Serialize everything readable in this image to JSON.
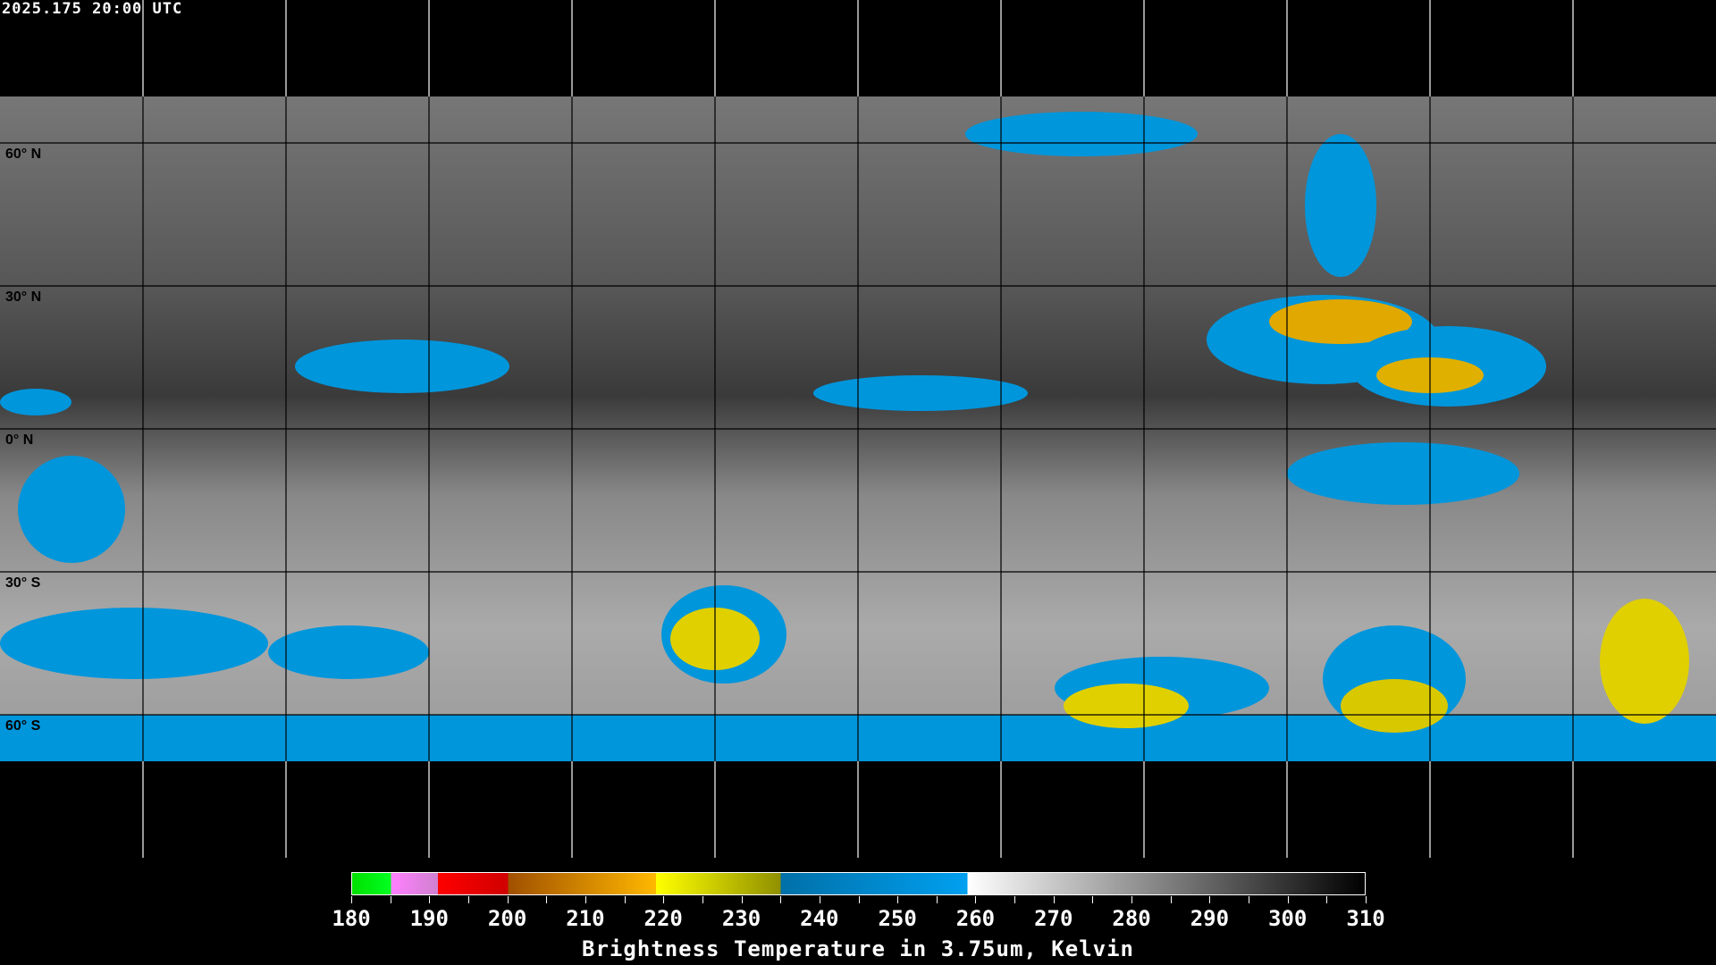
{
  "header": {
    "timestamp": "2025.175 20:00 UTC"
  },
  "map": {
    "projection": "equirectangular",
    "lat_labels": [
      "60° N",
      "30° N",
      "0° N",
      "30° S",
      "60° S"
    ],
    "gridline_color": "#000000",
    "polar_gridline_color": "#ffffff",
    "coastline_color": "#000000",
    "polar_coastline_color": "#ffffff"
  },
  "colorbar": {
    "title": "Brightness Temperature in 3.75um, Kelvin",
    "range": [
      180,
      310
    ],
    "ticks": [
      "180",
      "190",
      "200",
      "210",
      "220",
      "230",
      "240",
      "250",
      "260",
      "270",
      "280",
      "290",
      "300",
      "310"
    ],
    "segments": [
      {
        "from": 180,
        "to": 185,
        "colors": [
          "#00e000",
          "#00ff20"
        ]
      },
      {
        "from": 185,
        "to": 191,
        "colors": [
          "#ff80ff",
          "#d080d0"
        ]
      },
      {
        "from": 191,
        "to": 200,
        "colors": [
          "#ff0000",
          "#d00000"
        ]
      },
      {
        "from": 200,
        "to": 219,
        "colors": [
          "#a05000",
          "#ffb800"
        ]
      },
      {
        "from": 219,
        "to": 235,
        "colors": [
          "#ffff00",
          "#909000"
        ]
      },
      {
        "from": 235,
        "to": 259,
        "colors": [
          "#0070a8",
          "#00a0f0"
        ]
      },
      {
        "from": 259,
        "to": 310,
        "colors": [
          "#ffffff",
          "#000000"
        ]
      }
    ]
  }
}
